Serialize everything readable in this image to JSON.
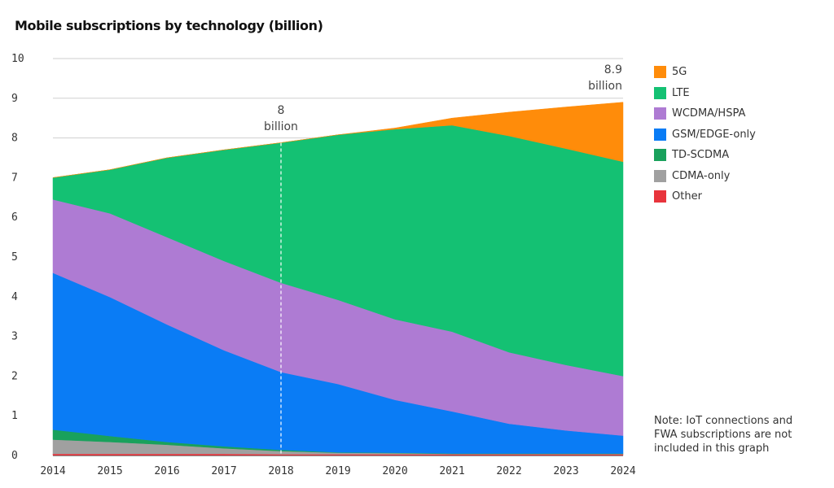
{
  "chart_data": {
    "type": "area",
    "stacked": true,
    "title": "Mobile subscriptions by technology (billion)",
    "xlabel": "",
    "ylabel": "",
    "x": [
      "2014",
      "2015",
      "2016",
      "2017",
      "2018",
      "2019",
      "2020",
      "2021",
      "2022",
      "2023",
      "2024"
    ],
    "ylim": [
      0,
      10
    ],
    "yticks": [
      "0",
      "1",
      "2",
      "3",
      "4",
      "5",
      "6",
      "7",
      "8",
      "9",
      "10"
    ],
    "grid": true,
    "legend_position": "right",
    "series": [
      {
        "name": "Other",
        "color": "#e8343c",
        "values": [
          0.04,
          0.04,
          0.04,
          0.04,
          0.03,
          0.03,
          0.03,
          0.03,
          0.03,
          0.03,
          0.03
        ]
      },
      {
        "name": "CDMA-only",
        "color": "#a0a0a0",
        "values": [
          0.36,
          0.3,
          0.23,
          0.14,
          0.08,
          0.04,
          0.03,
          0.01,
          0.01,
          0.01,
          0.01
        ]
      },
      {
        "name": "TD-SCDMA",
        "color": "#19a15c",
        "values": [
          0.25,
          0.15,
          0.07,
          0.05,
          0.03,
          0.01,
          0.01,
          0.01,
          0.01,
          0.01,
          0.01
        ]
      },
      {
        "name": "GSM/EDGE-only",
        "color": "#0a7cf5",
        "values": [
          3.95,
          3.5,
          2.96,
          2.42,
          1.96,
          1.72,
          1.33,
          1.06,
          0.75,
          0.58,
          0.45
        ]
      },
      {
        "name": "WCDMA/HSPA",
        "color": "#ae7bd3",
        "values": [
          1.85,
          2.11,
          2.2,
          2.25,
          2.25,
          2.12,
          2.03,
          2.01,
          1.8,
          1.65,
          1.5
        ]
      },
      {
        "name": "LTE",
        "color": "#14c173",
        "values": [
          0.55,
          1.1,
          2.0,
          2.8,
          3.53,
          4.16,
          4.79,
          5.2,
          5.45,
          5.45,
          5.4
        ]
      },
      {
        "name": "5G",
        "color": "#ff8c0a",
        "values": [
          0,
          0,
          0,
          0,
          0,
          0,
          0.03,
          0.18,
          0.6,
          1.05,
          1.5
        ]
      }
    ],
    "annotations": [
      {
        "id": "a2018",
        "x": "2018",
        "value_label": "8",
        "unit_label": "billion",
        "dashed_line": true
      },
      {
        "id": "a2024",
        "x": "2024",
        "value_label": "8.9",
        "unit_label": "billion",
        "dashed_line": false
      }
    ],
    "note": "Note: IoT connections and FWA subscriptions are not included in this graph"
  }
}
